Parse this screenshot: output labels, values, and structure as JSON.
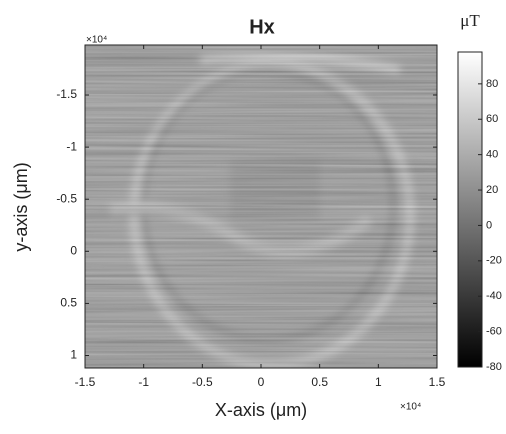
{
  "chart_data": {
    "type": "heatmap",
    "title": "Hx",
    "xlabel": "X-axis (μm)",
    "ylabel": "y-axis (μm)",
    "x_multiplier": "×10⁴",
    "y_multiplier": "×10⁴",
    "xlim": [
      -1.5,
      1.5
    ],
    "xticks": [
      -1.5,
      -1,
      -0.5,
      0,
      0.5,
      1,
      1.5
    ],
    "ylim": [
      -1.98,
      1.12
    ],
    "yticks": [
      -1.5,
      -1,
      -0.5,
      0,
      0.5,
      1
    ],
    "y_reversed": true,
    "colorbar": {
      "label": "μT",
      "lim": [
        -80,
        98
      ],
      "ticks": [
        -80,
        -60,
        -40,
        -20,
        0,
        20,
        40,
        60,
        80
      ]
    }
  }
}
